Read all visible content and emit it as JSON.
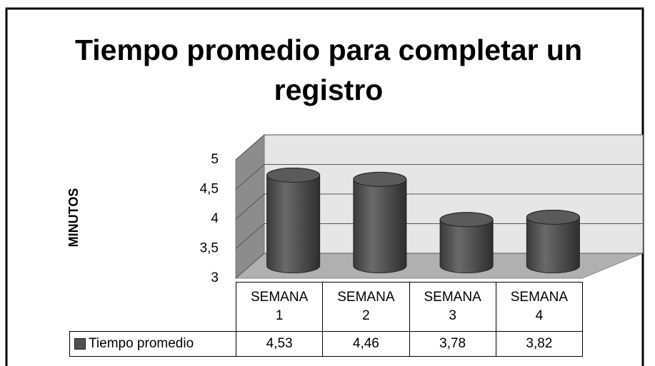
{
  "chart_data": {
    "type": "bar",
    "title": "Tiempo promedio para completar un registro",
    "y_label": "MINUTOS",
    "categories": [
      "SEMANA 1",
      "SEMANA 2",
      "SEMANA 3",
      "SEMANA 4"
    ],
    "series": [
      {
        "name": "Tiempo promedio",
        "color": "#4f4f4f",
        "values": [
          4.53,
          4.46,
          3.78,
          3.82
        ],
        "value_labels": [
          "4,53",
          "4,46",
          "3,78",
          "3,82"
        ]
      }
    ],
    "ylim": [
      3,
      5
    ],
    "yticks": [
      3,
      {
        "value": 3.5,
        "label": "3,5"
      },
      4,
      {
        "value": 4.5,
        "label": "4,5"
      },
      5
    ],
    "grid": true
  }
}
